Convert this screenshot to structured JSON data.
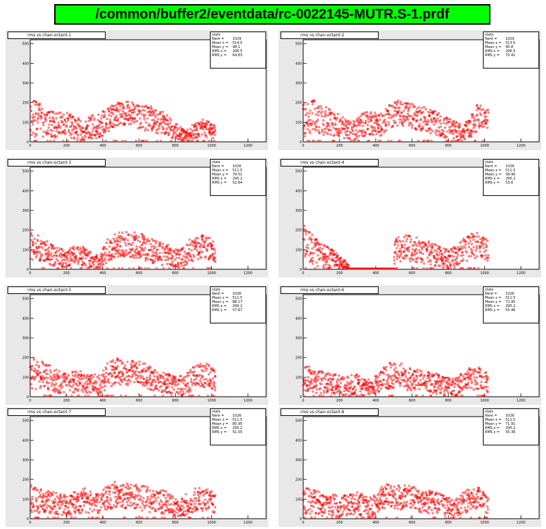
{
  "page_title": "/common/buffer2/eventdata/rc-0022145-MUTR.S-1.prdf",
  "colors": {
    "title_bg": "#00ff00",
    "pad_bg": "#e8e8e8",
    "marker": "#ff0000"
  },
  "chart_data": [
    {
      "type": "scatter",
      "title": "rms vs chan-octant-1",
      "stats_header": "stats",
      "stats": [
        {
          "name": "Nent =",
          "value": "1029"
        },
        {
          "name": "Mean x =",
          "value": "514.5"
        },
        {
          "name": "Mean y =",
          "value": "98.1"
        },
        {
          "name": "RMS x =",
          "value": "296.5"
        },
        {
          "name": "RMS y =",
          "value": "64.83"
        }
      ],
      "xlim": [
        0,
        1300
      ],
      "ylim": [
        0,
        520
      ],
      "xticks": [
        "0",
        "200",
        "400",
        "600",
        "800",
        "1000",
        "1200"
      ],
      "yticks": [
        "0",
        "100",
        "200",
        "300",
        "400",
        "500"
      ],
      "x_max_data": 1020,
      "profile": [
        [
          0,
          120,
          90
        ],
        [
          50,
          110,
          80
        ],
        [
          90,
          95,
          60
        ],
        [
          150,
          85,
          60
        ],
        [
          200,
          90,
          55
        ],
        [
          250,
          70,
          55
        ],
        [
          290,
          55,
          45
        ],
        [
          330,
          75,
          55
        ],
        [
          380,
          80,
          55
        ],
        [
          430,
          110,
          60
        ],
        [
          470,
          140,
          55
        ],
        [
          520,
          145,
          55
        ],
        [
          560,
          150,
          55
        ],
        [
          600,
          130,
          60
        ],
        [
          650,
          120,
          60
        ],
        [
          700,
          105,
          60
        ],
        [
          740,
          90,
          55
        ],
        [
          780,
          65,
          45
        ],
        [
          820,
          45,
          35
        ],
        [
          860,
          30,
          25
        ],
        [
          900,
          55,
          35
        ],
        [
          950,
          70,
          40
        ],
        [
          1000,
          60,
          35
        ],
        [
          1020,
          50,
          30
        ]
      ]
    },
    {
      "type": "scatter",
      "title": "rms vs chan-octant-2",
      "stats_header": "stats",
      "stats": [
        {
          "name": "Nent =",
          "value": "1029"
        },
        {
          "name": "Mean x =",
          "value": "513.5"
        },
        {
          "name": "Mean y =",
          "value": "95.8"
        },
        {
          "name": "RMS x =",
          "value": "296.5"
        },
        {
          "name": "RMS y =",
          "value": "75.41"
        }
      ],
      "xlim": [
        0,
        1300
      ],
      "ylim": [
        0,
        520
      ],
      "xticks": [
        "0",
        "200",
        "400",
        "600",
        "800",
        "1000",
        "1200"
      ],
      "yticks": [
        "0",
        "100",
        "200",
        "300",
        "400",
        "500"
      ],
      "x_max_data": 1020,
      "profile": [
        [
          0,
          110,
          80
        ],
        [
          50,
          130,
          80
        ],
        [
          100,
          115,
          70
        ],
        [
          150,
          100,
          65
        ],
        [
          200,
          85,
          55
        ],
        [
          250,
          60,
          45
        ],
        [
          300,
          70,
          55
        ],
        [
          340,
          90,
          60
        ],
        [
          380,
          95,
          60
        ],
        [
          420,
          80,
          55
        ],
        [
          470,
          135,
          60
        ],
        [
          520,
          145,
          60
        ],
        [
          560,
          140,
          55
        ],
        [
          620,
          130,
          60
        ],
        [
          680,
          110,
          60
        ],
        [
          740,
          95,
          55
        ],
        [
          790,
          70,
          50
        ],
        [
          840,
          60,
          45
        ],
        [
          880,
          45,
          35
        ],
        [
          920,
          70,
          50
        ],
        [
          960,
          125,
          60
        ],
        [
          990,
          135,
          55
        ],
        [
          1020,
          110,
          50
        ]
      ]
    },
    {
      "type": "scatter",
      "title": "rms vs chan-octant-3",
      "stats_header": "stats",
      "stats": [
        {
          "name": "Nent =",
          "value": "1026"
        },
        {
          "name": "Mean x =",
          "value": "511.5"
        },
        {
          "name": "Mean y =",
          "value": "79.51"
        },
        {
          "name": "RMS x =",
          "value": "295.2"
        },
        {
          "name": "RMS y =",
          "value": "52.64"
        }
      ],
      "xlim": [
        0,
        1300
      ],
      "ylim": [
        0,
        520
      ],
      "xticks": [
        "0",
        "200",
        "400",
        "600",
        "800",
        "1000",
        "1200"
      ],
      "yticks": [
        "0",
        "100",
        "200",
        "300",
        "400",
        "500"
      ],
      "x_max_data": 1020,
      "profile": [
        [
          0,
          120,
          70
        ],
        [
          50,
          105,
          60
        ],
        [
          100,
          80,
          55
        ],
        [
          150,
          60,
          45
        ],
        [
          200,
          55,
          40
        ],
        [
          250,
          75,
          45
        ],
        [
          300,
          65,
          45
        ],
        [
          340,
          45,
          35
        ],
        [
          380,
          40,
          30
        ],
        [
          430,
          100,
          55
        ],
        [
          470,
          120,
          55
        ],
        [
          520,
          130,
          60
        ],
        [
          560,
          125,
          60
        ],
        [
          620,
          115,
          60
        ],
        [
          680,
          90,
          55
        ],
        [
          740,
          80,
          55
        ],
        [
          790,
          55,
          40
        ],
        [
          840,
          60,
          45
        ],
        [
          880,
          95,
          55
        ],
        [
          920,
          110,
          55
        ],
        [
          960,
          115,
          55
        ],
        [
          1000,
          100,
          50
        ],
        [
          1020,
          85,
          45
        ]
      ]
    },
    {
      "type": "scatter",
      "title": "rms vs chan-octant-4",
      "stats_header": "stats",
      "stats": [
        {
          "name": "Nent =",
          "value": "1026"
        },
        {
          "name": "Mean x =",
          "value": "511.5"
        },
        {
          "name": "Mean y =",
          "value": "58.96"
        },
        {
          "name": "RMS x =",
          "value": "295.2"
        },
        {
          "name": "RMS y =",
          "value": "53.6"
        }
      ],
      "xlim": [
        0,
        1300
      ],
      "ylim": [
        0,
        520
      ],
      "xticks": [
        "0",
        "200",
        "400",
        "600",
        "800",
        "1000",
        "1200"
      ],
      "yticks": [
        "0",
        "100",
        "200",
        "300",
        "400",
        "500"
      ],
      "x_max_data": 1020,
      "flat_segment": [
        250,
        500
      ],
      "profile": [
        [
          0,
          130,
          90
        ],
        [
          40,
          110,
          70
        ],
        [
          80,
          80,
          60
        ],
        [
          120,
          70,
          55
        ],
        [
          160,
          55,
          45
        ],
        [
          200,
          40,
          35
        ],
        [
          240,
          20,
          15
        ],
        [
          260,
          2,
          1
        ],
        [
          480,
          2,
          1
        ],
        [
          510,
          95,
          60
        ],
        [
          560,
          110,
          60
        ],
        [
          610,
          105,
          60
        ],
        [
          660,
          90,
          55
        ],
        [
          710,
          80,
          55
        ],
        [
          760,
          60,
          45
        ],
        [
          800,
          55,
          40
        ],
        [
          840,
          70,
          50
        ],
        [
          880,
          95,
          55
        ],
        [
          920,
          115,
          60
        ],
        [
          960,
          120,
          60
        ],
        [
          1000,
          110,
          55
        ],
        [
          1020,
          90,
          45
        ]
      ]
    },
    {
      "type": "scatter",
      "title": "rms vs chan-octant-5",
      "stats_header": "stats",
      "stats": [
        {
          "name": "Nent =",
          "value": "1026"
        },
        {
          "name": "Mean x =",
          "value": "511.5"
        },
        {
          "name": "Mean y =",
          "value": "88.17"
        },
        {
          "name": "RMS x =",
          "value": "295.2"
        },
        {
          "name": "RMS y =",
          "value": "57.67"
        }
      ],
      "xlim": [
        0,
        1300
      ],
      "ylim": [
        0,
        520
      ],
      "xticks": [
        "0",
        "200",
        "400",
        "600",
        "800",
        "1000",
        "1200"
      ],
      "yticks": [
        "0",
        "100",
        "200",
        "300",
        "400",
        "500"
      ],
      "x_max_data": 1020,
      "profile": [
        [
          0,
          120,
          80
        ],
        [
          50,
          115,
          70
        ],
        [
          100,
          100,
          60
        ],
        [
          150,
          80,
          55
        ],
        [
          200,
          70,
          50
        ],
        [
          250,
          75,
          50
        ],
        [
          300,
          85,
          55
        ],
        [
          340,
          65,
          50
        ],
        [
          380,
          60,
          45
        ],
        [
          430,
          110,
          60
        ],
        [
          470,
          130,
          60
        ],
        [
          520,
          125,
          60
        ],
        [
          560,
          120,
          60
        ],
        [
          620,
          110,
          60
        ],
        [
          680,
          90,
          55
        ],
        [
          740,
          80,
          55
        ],
        [
          790,
          60,
          45
        ],
        [
          840,
          55,
          45
        ],
        [
          880,
          85,
          55
        ],
        [
          920,
          100,
          60
        ],
        [
          960,
          110,
          60
        ],
        [
          1000,
          95,
          55
        ],
        [
          1020,
          80,
          45
        ]
      ]
    },
    {
      "type": "scatter",
      "title": "rms vs chan-octant-6",
      "stats_header": "stats",
      "stats": [
        {
          "name": "Nent =",
          "value": "1026"
        },
        {
          "name": "Mean x =",
          "value": "511.5"
        },
        {
          "name": "Mean y =",
          "value": "72.95"
        },
        {
          "name": "RMS x =",
          "value": "295.2"
        },
        {
          "name": "RMS y =",
          "value": "55.46"
        }
      ],
      "xlim": [
        0,
        1300
      ],
      "ylim": [
        0,
        520
      ],
      "xticks": [
        "0",
        "200",
        "400",
        "600",
        "800",
        "1000",
        "1200"
      ],
      "yticks": [
        "0",
        "100",
        "200",
        "300",
        "400",
        "500"
      ],
      "x_max_data": 1020,
      "profile": [
        [
          0,
          90,
          70
        ],
        [
          50,
          85,
          60
        ],
        [
          100,
          70,
          55
        ],
        [
          150,
          65,
          50
        ],
        [
          200,
          60,
          45
        ],
        [
          250,
          55,
          45
        ],
        [
          300,
          65,
          50
        ],
        [
          340,
          50,
          40
        ],
        [
          380,
          45,
          35
        ],
        [
          430,
          90,
          55
        ],
        [
          470,
          105,
          60
        ],
        [
          520,
          110,
          60
        ],
        [
          560,
          100,
          60
        ],
        [
          620,
          90,
          55
        ],
        [
          680,
          75,
          50
        ],
        [
          740,
          70,
          50
        ],
        [
          790,
          55,
          40
        ],
        [
          840,
          50,
          40
        ],
        [
          880,
          70,
          50
        ],
        [
          920,
          90,
          55
        ],
        [
          960,
          100,
          55
        ],
        [
          1000,
          80,
          50
        ],
        [
          1020,
          65,
          40
        ]
      ]
    },
    {
      "type": "scatter",
      "title": "rms vs chan-octant-7",
      "stats_header": "stats",
      "stats": [
        {
          "name": "Nent =",
          "value": "1026"
        },
        {
          "name": "Mean x =",
          "value": "511.5"
        },
        {
          "name": "Mean y =",
          "value": "85.95"
        },
        {
          "name": "RMS x =",
          "value": "295.2"
        },
        {
          "name": "RMS y =",
          "value": "51.55"
        }
      ],
      "xlim": [
        0,
        1300
      ],
      "ylim": [
        0,
        520
      ],
      "xticks": [
        "0",
        "200",
        "400",
        "600",
        "800",
        "1000",
        "1200"
      ],
      "yticks": [
        "0",
        "100",
        "200",
        "300",
        "400",
        "500"
      ],
      "x_max_data": 1020,
      "profile": [
        [
          0,
          100,
          70
        ],
        [
          50,
          95,
          60
        ],
        [
          100,
          85,
          55
        ],
        [
          150,
          75,
          50
        ],
        [
          200,
          70,
          50
        ],
        [
          250,
          80,
          55
        ],
        [
          300,
          90,
          60
        ],
        [
          340,
          75,
          55
        ],
        [
          380,
          70,
          50
        ],
        [
          430,
          110,
          60
        ],
        [
          470,
          125,
          60
        ],
        [
          520,
          120,
          60
        ],
        [
          560,
          115,
          60
        ],
        [
          620,
          105,
          60
        ],
        [
          680,
          90,
          55
        ],
        [
          740,
          85,
          55
        ],
        [
          790,
          65,
          45
        ],
        [
          840,
          60,
          45
        ],
        [
          880,
          85,
          55
        ],
        [
          920,
          100,
          55
        ],
        [
          960,
          100,
          55
        ],
        [
          1000,
          90,
          50
        ],
        [
          1020,
          75,
          45
        ]
      ]
    },
    {
      "type": "scatter",
      "title": "rms vs chan-octant-8",
      "stats_header": "stats",
      "stats": [
        {
          "name": "Nent =",
          "value": "1026"
        },
        {
          "name": "Mean x =",
          "value": "511.5"
        },
        {
          "name": "Mean y =",
          "value": "71.91"
        },
        {
          "name": "RMS x =",
          "value": "295.2"
        },
        {
          "name": "RMS y =",
          "value": "55.36"
        }
      ],
      "xlim": [
        0,
        1300
      ],
      "ylim": [
        0,
        520
      ],
      "xticks": [
        "0",
        "200",
        "400",
        "600",
        "800",
        "1000",
        "1200"
      ],
      "yticks": [
        "0",
        "100",
        "200",
        "300",
        "400",
        "500"
      ],
      "x_max_data": 1020,
      "profile": [
        [
          0,
          90,
          65
        ],
        [
          50,
          85,
          60
        ],
        [
          100,
          75,
          55
        ],
        [
          150,
          70,
          50
        ],
        [
          200,
          65,
          50
        ],
        [
          250,
          70,
          50
        ],
        [
          300,
          80,
          55
        ],
        [
          340,
          65,
          50
        ],
        [
          380,
          60,
          45
        ],
        [
          430,
          100,
          55
        ],
        [
          470,
          115,
          60
        ],
        [
          520,
          115,
          60
        ],
        [
          560,
          110,
          60
        ],
        [
          620,
          100,
          55
        ],
        [
          680,
          85,
          55
        ],
        [
          740,
          80,
          55
        ],
        [
          790,
          60,
          45
        ],
        [
          840,
          55,
          40
        ],
        [
          880,
          80,
          50
        ],
        [
          920,
          100,
          55
        ],
        [
          960,
          105,
          55
        ],
        [
          1000,
          85,
          50
        ],
        [
          1020,
          70,
          45
        ]
      ]
    }
  ]
}
